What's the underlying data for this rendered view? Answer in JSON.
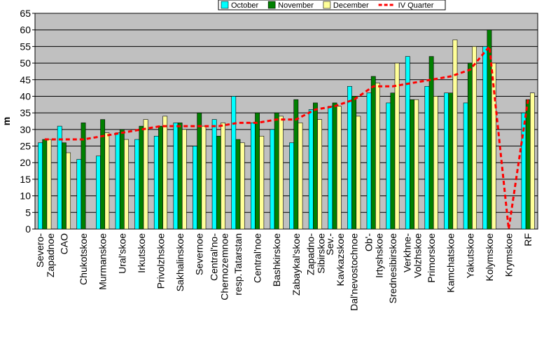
{
  "chart_data": {
    "type": "bar",
    "y_label": "m",
    "categories": [
      "Severo-\nZapadnoe",
      "CAO",
      "Chukotskoe",
      "Murmanskoe",
      "Ural'skoe",
      "Irkutskoe",
      "Privolzhskoe",
      "Sakhalinskoe",
      "Severnoe",
      "Central'no-\nChernozemnoe",
      "resp.Tatarstan",
      "Central'noe",
      "Bashkirskoe",
      "Zabaykal'skoe",
      "Zapadno-\nSibirskoe",
      "Sev.-\nKavkazskoe",
      "Dal'nevostochnoe",
      "Ob'-\nIrtyshskoe",
      "Srednesibirskoe",
      "Verkhne-\nVolzhskoe",
      "Primorskoe",
      "Kamchatskoe",
      "Yakutskoe",
      "Kolymskoe",
      "Krymskoe",
      "RF"
    ],
    "series": [
      {
        "name": "October",
        "type": "bar",
        "color": "#00ffff",
        "values": [
          26,
          31,
          21,
          22,
          29,
          27,
          28,
          32,
          25,
          33,
          40,
          32,
          30,
          26,
          36,
          37,
          43,
          41,
          38,
          52,
          43,
          41,
          38,
          55,
          null,
          35
        ]
      },
      {
        "name": "November",
        "type": "bar",
        "color": "#008000",
        "values": [
          27,
          26,
          32,
          33,
          30,
          31,
          31,
          32,
          35,
          28,
          27,
          35,
          35,
          39,
          38,
          38,
          40,
          46,
          41,
          39,
          52,
          41,
          50,
          60,
          null,
          39
        ]
      },
      {
        "name": "December",
        "type": "bar",
        "color": "#ffff99",
        "values": [
          27,
          23,
          null,
          29,
          27,
          33,
          34,
          30,
          31,
          32,
          26,
          28,
          34,
          32,
          33,
          37,
          34,
          44,
          50,
          39,
          40,
          57,
          55,
          50,
          null,
          41
        ]
      },
      {
        "name": "IV Quarter",
        "type": "line",
        "color": "#ff0000",
        "values": [
          27,
          27,
          27,
          28,
          29,
          30,
          31,
          31,
          31,
          31,
          32,
          32,
          33,
          33,
          36,
          37,
          39,
          43,
          43,
          44,
          45,
          46,
          48,
          55,
          0,
          39
        ]
      }
    ],
    "ylim": [
      0,
      65
    ],
    "yticks": [
      0,
      5,
      10,
      15,
      20,
      25,
      30,
      35,
      40,
      45,
      50,
      55,
      60,
      65
    ],
    "grid": true,
    "legend": "top"
  }
}
